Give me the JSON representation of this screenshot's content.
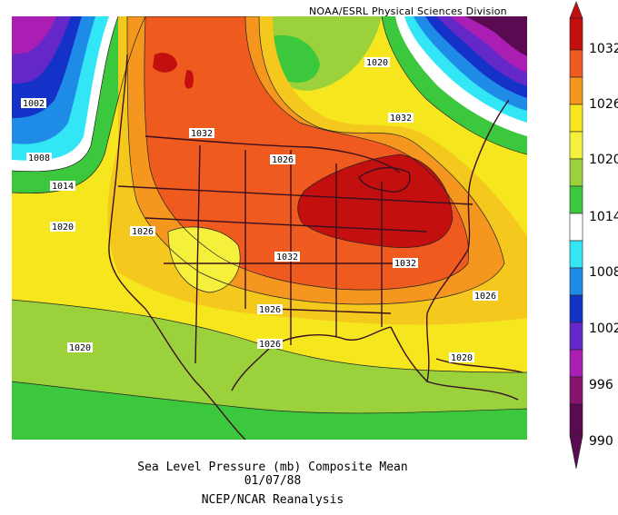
{
  "credit": "NOAA/ESRL Physical Sciences Division",
  "caption": {
    "title": "Sea Level Pressure (mb) Composite Mean",
    "date": "01/07/88",
    "source": "NCEP/NCAR Reanalysis"
  },
  "colorbar": {
    "levels": [
      "1032",
      "1026",
      "1020",
      "1014",
      "1008",
      "1002",
      "996",
      "990"
    ],
    "colors": [
      "#c40f0f",
      "#ef5a1e",
      "#f5961e",
      "#f5e61e",
      "#9bd23c",
      "#3cc83c",
      "#ffffff",
      "#32e6f5",
      "#1e8ce6",
      "#1432c8",
      "#6428c8",
      "#aa1eb4",
      "#87146e",
      "#5a0a50"
    ]
  },
  "contour_labels": [
    "1002",
    "1008",
    "1014",
    "1020",
    "1026",
    "1032",
    "1026",
    "1020",
    "1026",
    "1032",
    "1032",
    "1032",
    "1026",
    "1026",
    "1020",
    "1020",
    "1020",
    "1026",
    "1020"
  ],
  "fills": {
    "p1032": "#c40f0f",
    "p1029": "#ef5a1e",
    "p1026": "#f5961e",
    "p1023": "#f5c81e",
    "p1020": "#f5f03c",
    "p1017": "#b4dc3c",
    "p1014": "#3cc83c",
    "p1011": "#ffffff",
    "p1008": "#32e6f5",
    "p1005": "#1e8ce6",
    "p1002": "#1432c8",
    "p999": "#6428c8",
    "p996": "#aa1eb4",
    "p990": "#5a0a50"
  }
}
